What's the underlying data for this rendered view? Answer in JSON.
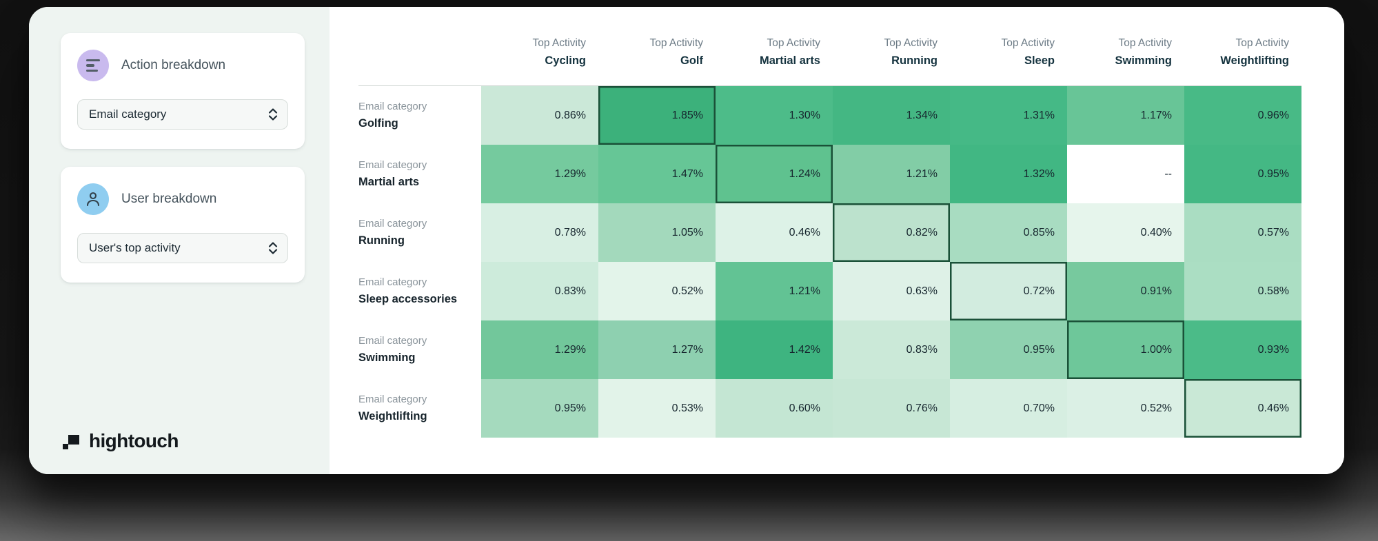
{
  "brand": {
    "logo_text": "hightouch",
    "logo_color": "#14191d",
    "accent_green_dark": "#2fa873",
    "heatmap_highlight_border": "#1a5138",
    "sidebar_bg": "#eef4f1"
  },
  "sidebar": {
    "cards": [
      {
        "title": "Action breakdown",
        "icon": "bars-icon",
        "icon_bg": "#c9baee",
        "dropdown_value": "Email category"
      },
      {
        "title": "User breakdown",
        "icon": "person-icon",
        "icon_bg": "#8fcdf0",
        "dropdown_value": "User's top activity"
      }
    ]
  },
  "chart_data": {
    "type": "heatmap",
    "column_header_prefix": "Top Activity",
    "row_header_prefix": "Email category",
    "columns": [
      "Cycling",
      "Golf",
      "Martial arts",
      "Running",
      "Sleep",
      "Swimming",
      "Weightlifting"
    ],
    "rows": [
      "Golfing",
      "Martial arts",
      "Running",
      "Sleep accessories",
      "Swimming",
      "Weightlifting"
    ],
    "values": [
      [
        0.86,
        1.85,
        1.3,
        1.34,
        1.31,
        1.17,
        0.96
      ],
      [
        1.29,
        1.47,
        1.24,
        1.21,
        1.32,
        null,
        0.95
      ],
      [
        0.78,
        1.05,
        0.46,
        0.82,
        0.85,
        0.4,
        0.57
      ],
      [
        0.83,
        0.52,
        1.21,
        0.63,
        0.72,
        0.91,
        0.58
      ],
      [
        1.29,
        1.27,
        1.42,
        0.83,
        0.95,
        1.0,
        0.93
      ],
      [
        0.95,
        0.53,
        0.6,
        0.76,
        0.7,
        0.52,
        0.46
      ]
    ],
    "labels": [
      [
        "0.86%",
        "1.85%",
        "1.30%",
        "1.34%",
        "1.31%",
        "1.17%",
        "0.96%"
      ],
      [
        "1.29%",
        "1.47%",
        "1.24%",
        "1.21%",
        "1.32%",
        "--",
        "0.95%"
      ],
      [
        "0.78%",
        "1.05%",
        "0.46%",
        "0.82%",
        "0.85%",
        "0.40%",
        "0.57%"
      ],
      [
        "0.83%",
        "0.52%",
        "1.21%",
        "0.63%",
        "0.72%",
        "0.91%",
        "0.58%"
      ],
      [
        "1.29%",
        "1.27%",
        "1.42%",
        "0.83%",
        "0.95%",
        "1.00%",
        "0.93%"
      ],
      [
        "0.95%",
        "0.53%",
        "0.60%",
        "0.76%",
        "0.70%",
        "0.52%",
        "0.46%"
      ]
    ],
    "cell_colors": [
      [
        "#cbe8d8",
        "#3cb17b",
        "#4dbc89",
        "#44b783",
        "#45b986",
        "#68c597",
        "#48ba86"
      ],
      [
        "#75ca9e",
        "#66c696",
        "#5fc28f",
        "#82cda6",
        "#41b783",
        "#ffffff",
        "#44b884"
      ],
      [
        "#d8efe3",
        "#a3d9bc",
        "#ddf2e7",
        "#bce2cd",
        "#a8dcc1",
        "#e6f5ec",
        "#aaddc2"
      ],
      [
        "#cdebdb",
        "#e3f4ea",
        "#62c394",
        "#def1e7",
        "#d2ecdf",
        "#77c99e",
        "#abdec3"
      ],
      [
        "#72c79b",
        "#8ed0b0",
        "#3eb480",
        "#cbe9d8",
        "#8fd2b0",
        "#6ec79a",
        "#4bbb88"
      ],
      [
        "#a5dabe",
        "#e2f3e9",
        "#c4e6d3",
        "#c7e7d5",
        "#d6eee1",
        "#dbf0e5",
        "#c9e8d6"
      ]
    ],
    "highlighted_cells": [
      [
        0,
        1
      ],
      [
        1,
        2
      ],
      [
        2,
        3
      ],
      [
        3,
        4
      ],
      [
        4,
        5
      ],
      [
        5,
        6
      ]
    ],
    "legend": "none",
    "grid": false
  }
}
